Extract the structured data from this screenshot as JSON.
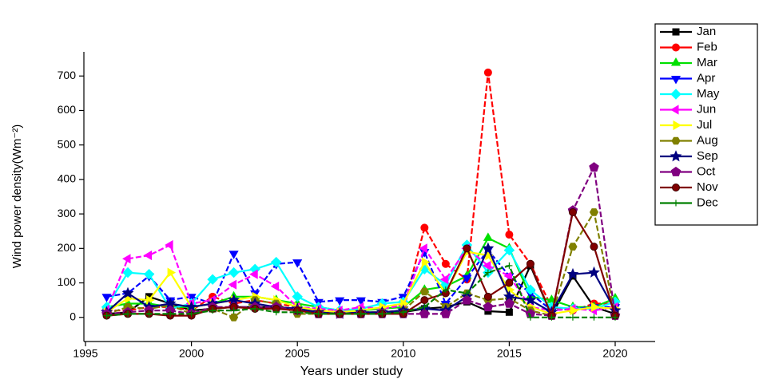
{
  "chart_data": {
    "type": "line",
    "x_label": "Years under study",
    "y_label": "Wind power density(Wm⁻²)",
    "x": [
      1996,
      1997,
      1998,
      1999,
      2000,
      2001,
      2002,
      2003,
      2004,
      2005,
      2006,
      2007,
      2008,
      2009,
      2010,
      2011,
      2012,
      2013,
      2014,
      2015,
      2016,
      2017,
      2018,
      2019,
      2020
    ],
    "xlim": [
      1995,
      2022
    ],
    "xticks": [
      1995,
      2000,
      2005,
      2010,
      2015,
      2020
    ],
    "ylim": [
      -70,
      770
    ],
    "yticks": [
      0,
      100,
      200,
      300,
      400,
      500,
      600,
      700
    ],
    "legend": "right",
    "series": [
      {
        "name": "Jan",
        "color": "#000000",
        "marker": "square",
        "values": [
          10,
          15,
          60,
          40,
          20,
          25,
          30,
          30,
          30,
          25,
          15,
          10,
          10,
          15,
          15,
          25,
          30,
          45,
          18,
          15,
          150,
          5,
          120,
          30,
          10
        ]
      },
      {
        "name": "Feb",
        "color": "#ff0000",
        "marker": "circle",
        "values": [
          20,
          20,
          30,
          30,
          20,
          60,
          40,
          50,
          40,
          30,
          20,
          15,
          15,
          15,
          20,
          260,
          155,
          110,
          710,
          240,
          155,
          30,
          20,
          40,
          40
        ]
      },
      {
        "name": "Mar",
        "color": "#00e000",
        "marker": "triangle-up",
        "values": [
          30,
          40,
          40,
          30,
          30,
          40,
          60,
          60,
          50,
          40,
          30,
          20,
          20,
          25,
          30,
          80,
          90,
          120,
          230,
          200,
          60,
          50,
          30,
          30,
          55
        ]
      },
      {
        "name": "Apr",
        "color": "#0000ff",
        "marker": "triangle-down",
        "values": [
          60,
          70,
          120,
          50,
          60,
          40,
          185,
          70,
          155,
          160,
          45,
          50,
          50,
          45,
          60,
          190,
          40,
          115,
          195,
          120,
          70,
          20,
          25,
          30,
          30
        ]
      },
      {
        "name": "May",
        "color": "#00ffff",
        "marker": "diamond",
        "values": [
          30,
          130,
          125,
          25,
          40,
          110,
          130,
          140,
          160,
          60,
          30,
          20,
          25,
          40,
          45,
          140,
          95,
          210,
          130,
          195,
          80,
          30,
          25,
          25,
          45
        ]
      },
      {
        "name": "Jun",
        "color": "#ff00ff",
        "marker": "triangle-left",
        "values": [
          20,
          170,
          180,
          210,
          40,
          50,
          95,
          125,
          90,
          30,
          25,
          20,
          30,
          25,
          35,
          200,
          110,
          200,
          150,
          120,
          30,
          20,
          25,
          20,
          30
        ]
      },
      {
        "name": "Jul",
        "color": "#ffff00",
        "marker": "triangle-right",
        "values": [
          15,
          55,
          50,
          130,
          30,
          40,
          50,
          60,
          50,
          30,
          20,
          15,
          20,
          30,
          40,
          160,
          70,
          190,
          180,
          80,
          30,
          10,
          20,
          30,
          25
        ]
      },
      {
        "name": "Aug",
        "color": "#808000",
        "marker": "hexagon",
        "values": [
          10,
          30,
          25,
          35,
          10,
          25,
          0,
          50,
          40,
          10,
          10,
          10,
          10,
          15,
          20,
          75,
          30,
          70,
          50,
          55,
          20,
          5,
          205,
          305,
          5
        ]
      },
      {
        "name": "Sep",
        "color": "#000080",
        "marker": "star",
        "values": [
          15,
          70,
          30,
          40,
          30,
          40,
          50,
          40,
          30,
          25,
          15,
          10,
          15,
          15,
          20,
          25,
          20,
          60,
          200,
          60,
          50,
          15,
          125,
          130,
          20
        ]
      },
      {
        "name": "Oct",
        "color": "#800080",
        "marker": "pentagon",
        "values": [
          10,
          15,
          20,
          20,
          10,
          30,
          30,
          30,
          30,
          20,
          10,
          10,
          10,
          10,
          10,
          10,
          10,
          50,
          30,
          40,
          10,
          5,
          310,
          435,
          5
        ]
      },
      {
        "name": "Nov",
        "color": "#800000",
        "marker": "sphere",
        "values": [
          5,
          10,
          10,
          5,
          5,
          25,
          30,
          25,
          25,
          20,
          10,
          10,
          10,
          10,
          10,
          50,
          70,
          200,
          60,
          100,
          155,
          5,
          305,
          205,
          5
        ]
      },
      {
        "name": "Dec",
        "color": "#008000",
        "marker": "plus",
        "values": [
          5,
          10,
          10,
          10,
          10,
          20,
          20,
          25,
          15,
          15,
          10,
          10,
          10,
          10,
          15,
          30,
          80,
          70,
          130,
          150,
          0,
          0,
          0,
          0,
          0
        ]
      }
    ]
  }
}
